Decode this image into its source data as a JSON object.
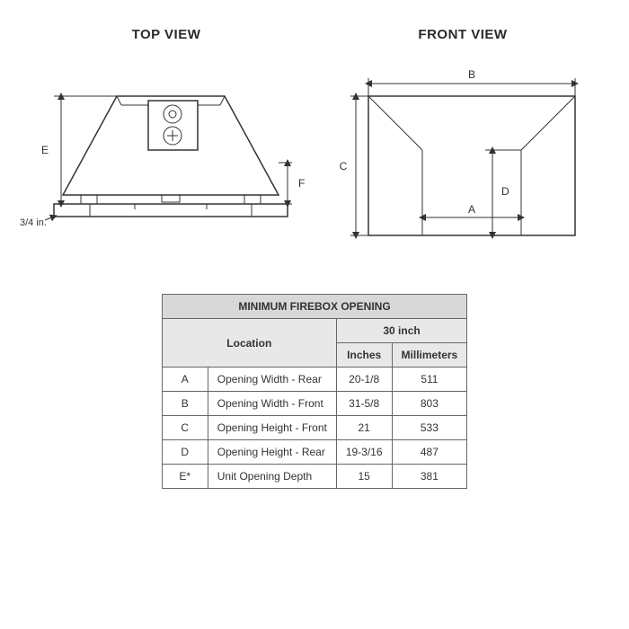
{
  "titles": {
    "top_view": "TOP VIEW",
    "front_view": "FRONT VIEW"
  },
  "top_view": {
    "note_label": "3/4 in.",
    "dim_E": "E",
    "dim_F": "F",
    "outline_color": "#333333",
    "fill_color": "#ffffff"
  },
  "front_view": {
    "dim_A": "A",
    "dim_B": "B",
    "dim_C": "C",
    "dim_D": "D",
    "outline_color": "#333333",
    "fill_color": "#ffffff"
  },
  "table": {
    "title": "MINIMUM FIREBOX OPENING",
    "col_location": "Location",
    "col_size_group": "30 inch",
    "col_inches": "Inches",
    "col_mm": "Millimeters",
    "rows": [
      {
        "code": "A",
        "desc": "Opening Width - Rear",
        "in": "20-1/8",
        "mm": "511"
      },
      {
        "code": "B",
        "desc": "Opening Width - Front",
        "in": "31-5/8",
        "mm": "803"
      },
      {
        "code": "C",
        "desc": "Opening Height - Front",
        "in": "21",
        "mm": "533"
      },
      {
        "code": "D",
        "desc": "Opening Height - Rear",
        "in": "19-3/16",
        "mm": "487"
      },
      {
        "code": "E*",
        "desc": "Unit Opening Depth",
        "in": "15",
        "mm": "381"
      }
    ],
    "header_bg": "#d8d8d8",
    "subheader_bg": "#e8e8e8",
    "border_color": "#666666",
    "font_size": 12
  },
  "colors": {
    "text": "#333333",
    "background": "#ffffff"
  }
}
